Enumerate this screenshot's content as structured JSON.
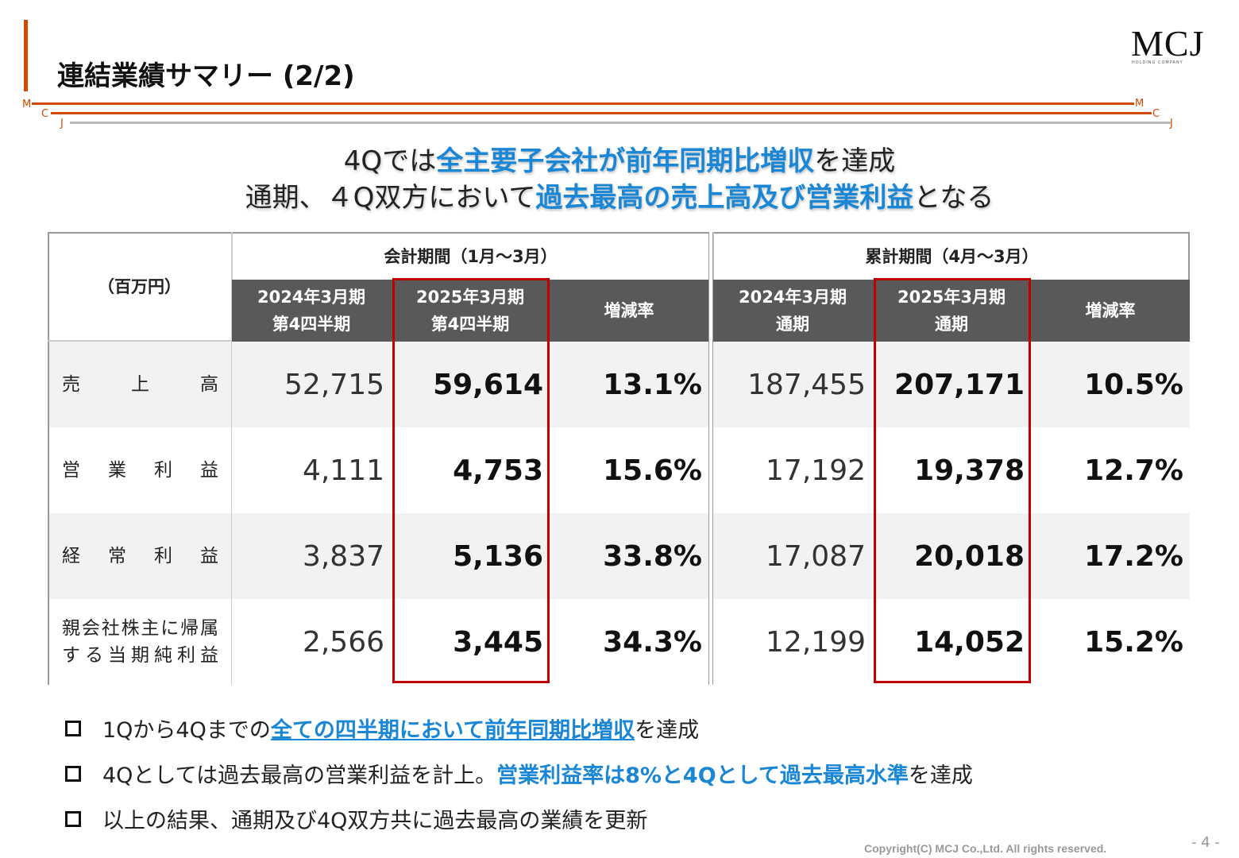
{
  "header": {
    "title": "連結業績サマリー (2/2)",
    "logo": "MCJ",
    "logo_sub": "HOLDING COMPANY",
    "rule_letters": [
      "M",
      "C",
      "J"
    ]
  },
  "headline": [
    [
      {
        "text": "4Qでは",
        "highlight": false
      },
      {
        "text": "全主要子会社が前年同期比増収",
        "highlight": true
      },
      {
        "text": "を達成",
        "highlight": false
      }
    ],
    [
      {
        "text": "通期、４Q双方において",
        "highlight": false
      },
      {
        "text": "過去最高の売上高及び営業利益",
        "highlight": true
      },
      {
        "text": "となる",
        "highlight": false
      }
    ]
  ],
  "table": {
    "unit_label": "（百万円）",
    "groups": [
      "会計期間（1月～3月）",
      "累計期間（4月～3月）"
    ],
    "columns": [
      {
        "lines": [
          "2024年3月期",
          "第4四半期"
        ],
        "bold": false,
        "boxed": false
      },
      {
        "lines": [
          "2025年3月期",
          "第4四半期"
        ],
        "bold": true,
        "boxed": true
      },
      {
        "lines": [
          "増減率"
        ],
        "bold": true,
        "boxed": false
      },
      {
        "lines": [
          "2024年3月期",
          "通期"
        ],
        "bold": false,
        "boxed": false
      },
      {
        "lines": [
          "2025年3月期",
          "通期"
        ],
        "bold": true,
        "boxed": true
      },
      {
        "lines": [
          "増減率"
        ],
        "bold": true,
        "boxed": false
      }
    ],
    "rows": [
      {
        "label": "売上高",
        "cells": [
          "52,715",
          "59,614",
          "13.1%",
          "187,455",
          "207,171",
          "10.5%"
        ]
      },
      {
        "label": "営業利益",
        "cells": [
          "4,111",
          "4,753",
          "15.6%",
          "17,192",
          "19,378",
          "12.7%"
        ]
      },
      {
        "label": "経常利益",
        "cells": [
          "3,837",
          "5,136",
          "33.8%",
          "17,087",
          "20,018",
          "17.2%"
        ]
      },
      {
        "label": "親会社株主に帰属する当期純利益",
        "cells": [
          "2,566",
          "3,445",
          "34.3%",
          "12,199",
          "14,052",
          "15.2%"
        ]
      }
    ]
  },
  "bullets": [
    [
      {
        "text": "1Qから4Qまでの",
        "highlight": false
      },
      {
        "text": "全ての四半期において前年同期比増収",
        "highlight": true,
        "underline": true
      },
      {
        "text": "を達成",
        "highlight": false
      }
    ],
    [
      {
        "text": "4Qとしては過去最高の営業利益を計上。",
        "highlight": false
      },
      {
        "text": "営業利益率は8%と4Qとして過去最高水準",
        "highlight": true
      },
      {
        "text": "を達成",
        "highlight": false
      }
    ],
    [
      {
        "text": "以上の結果、通期及び4Q双方共に過去最高の業績を更新",
        "highlight": false
      }
    ]
  ],
  "footer": {
    "copyright": "Copyright(C) MCJ Co.,Ltd. All rights reserved.",
    "page": "- 4 -"
  }
}
